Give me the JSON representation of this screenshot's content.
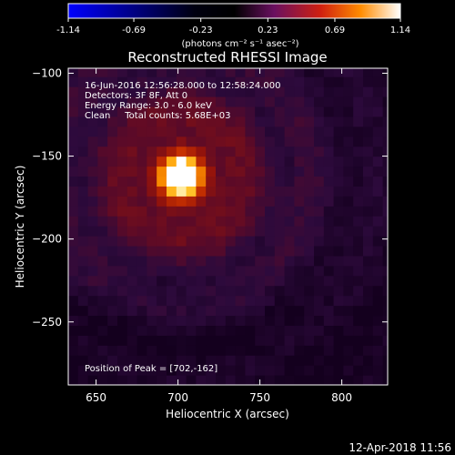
{
  "colorbar": {
    "tick_labels": [
      "-1.14",
      "-0.69",
      "-0.23",
      "0.23",
      "0.69",
      "1.14"
    ],
    "units_label": "(photons cm⁻² s⁻¹ asec⁻²)",
    "range": [
      -1.14,
      1.14
    ]
  },
  "title": "Reconstructed RHESSI Image",
  "annotations": {
    "time_range": "16-Jun-2016 12:56:28.000 to 12:58:24.000",
    "detectors": "Detectors: 3F 8F, Att 0",
    "energy": "Energy Range: 3.0 - 6.0 keV",
    "clean": "Clean     Total counts: 5.68E+03",
    "peak": "Position of Peak = [702,-162]"
  },
  "footer_timestamp": "12-Apr-2018 11:56",
  "chart_data": {
    "type": "heatmap",
    "title": "Reconstructed RHESSI Image",
    "xlabel": "Heliocentric X (arcsec)",
    "ylabel": "Heliocentric Y (arcsec)",
    "xlim": [
      633,
      828
    ],
    "ylim": [
      -288,
      -97
    ],
    "xticks": [
      650,
      700,
      750,
      800
    ],
    "yticks": [
      -100,
      -150,
      -200,
      -250
    ],
    "grid_step_arcsec": 6,
    "peak": {
      "x": 702,
      "y": -162,
      "value": 1.14
    },
    "colormap": [
      "#0000ff",
      "#000000",
      "#4a1080",
      "#b02020",
      "#ff6000",
      "#ffd000",
      "#ffffff"
    ]
  }
}
